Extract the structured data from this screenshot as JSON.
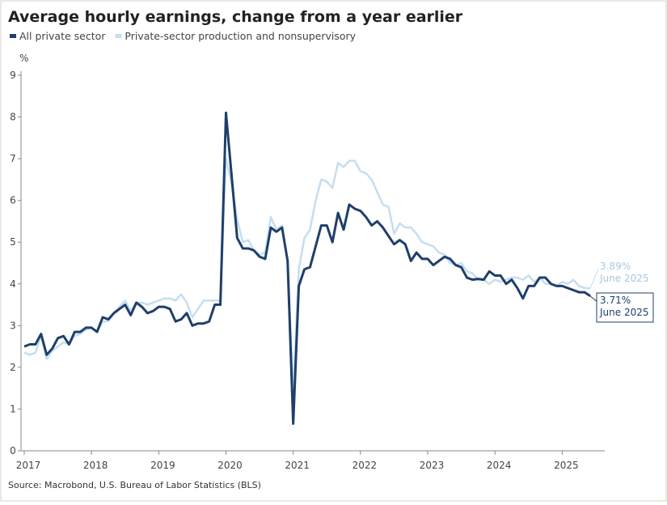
{
  "chart_data": {
    "type": "line",
    "title": "Average hourly earnings, change from a year earlier",
    "y_label": "%",
    "source": "Source: Macrobond, U.S. Bureau of Labor Statistics (BLS)",
    "categories": [
      "2017",
      null,
      null,
      null,
      null,
      null,
      null,
      null,
      null,
      null,
      null,
      null,
      "2018",
      null,
      null,
      null,
      null,
      null,
      null,
      null,
      null,
      null,
      null,
      null,
      "2019",
      null,
      null,
      null,
      null,
      null,
      null,
      null,
      null,
      null,
      null,
      null,
      "2020",
      null,
      null,
      null,
      null,
      null,
      null,
      null,
      null,
      null,
      null,
      null,
      "2021",
      null,
      null,
      null,
      null,
      null,
      null,
      null,
      null,
      null,
      null,
      null,
      "2022",
      null,
      null,
      null,
      null,
      null,
      null,
      null,
      null,
      null,
      null,
      null,
      "2023",
      null,
      null,
      null,
      null,
      null,
      null,
      null,
      null,
      null,
      null,
      null,
      "2024",
      null,
      null,
      null,
      null,
      null,
      null,
      null,
      null,
      null,
      null,
      null,
      "2025",
      null,
      null,
      null,
      null,
      null
    ],
    "series": [
      {
        "name": "All private sector",
        "color": "#1f3f6b",
        "values": [
          2.5,
          2.55,
          2.55,
          2.8,
          2.3,
          2.45,
          2.7,
          2.75,
          2.55,
          2.85,
          2.85,
          2.95,
          2.95,
          2.85,
          3.2,
          3.15,
          3.3,
          3.4,
          3.5,
          3.25,
          3.55,
          3.45,
          3.3,
          3.35,
          3.45,
          3.45,
          3.4,
          3.1,
          3.15,
          3.3,
          3.0,
          3.05,
          3.05,
          3.1,
          3.5,
          3.5,
          8.1,
          6.6,
          5.1,
          4.85,
          4.85,
          4.8,
          4.65,
          4.6,
          5.35,
          5.25,
          5.35,
          4.55,
          0.65,
          3.95,
          4.35,
          4.4,
          4.9,
          5.4,
          5.4,
          5.0,
          5.7,
          5.3,
          5.9,
          5.8,
          5.75,
          5.6,
          5.4,
          5.5,
          5.35,
          5.15,
          4.95,
          5.05,
          4.95,
          4.55,
          4.75,
          4.6,
          4.6,
          4.45,
          4.55,
          4.65,
          4.6,
          4.45,
          4.4,
          4.15,
          4.1,
          4.12,
          4.1,
          4.3,
          4.2,
          4.2,
          4.0,
          4.1,
          3.9,
          3.65,
          3.95,
          3.95,
          4.15,
          4.15,
          4.0,
          3.95,
          3.95,
          3.9,
          3.85,
          3.8,
          3.8,
          3.71
        ],
        "end_label": "3.71%",
        "end_date": "June 2025"
      },
      {
        "name": "Private-sector production and nonsupervisory",
        "color": "#c5def0",
        "values": [
          2.35,
          2.3,
          2.35,
          2.75,
          2.2,
          2.4,
          2.5,
          2.6,
          2.55,
          2.75,
          2.8,
          2.9,
          2.95,
          2.85,
          3.1,
          3.1,
          3.3,
          3.45,
          3.6,
          3.35,
          3.55,
          3.55,
          3.5,
          3.55,
          3.6,
          3.65,
          3.65,
          3.6,
          3.75,
          3.55,
          3.2,
          3.4,
          3.6,
          3.6,
          3.6,
          3.6,
          7.0,
          6.4,
          5.55,
          5.0,
          5.05,
          4.8,
          4.7,
          4.75,
          5.6,
          5.3,
          5.4,
          4.55,
          1.4,
          4.35,
          5.1,
          5.3,
          6.0,
          6.5,
          6.45,
          6.3,
          6.9,
          6.8,
          6.95,
          6.95,
          6.7,
          6.65,
          6.5,
          6.2,
          5.9,
          5.85,
          5.2,
          5.45,
          5.35,
          5.35,
          5.2,
          5.0,
          4.95,
          4.9,
          4.75,
          4.7,
          4.5,
          4.45,
          4.5,
          4.3,
          4.25,
          4.1,
          4.1,
          4.0,
          4.1,
          4.05,
          4.1,
          4.15,
          4.15,
          4.1,
          4.2,
          4.05,
          4.15,
          4.0,
          4.0,
          3.95,
          4.05,
          4.0,
          4.1,
          3.95,
          3.9,
          3.89
        ],
        "end_label": "3.89%",
        "end_date": "June 2025"
      }
    ],
    "ylim": [
      0,
      9
    ],
    "yticks": [
      0,
      1,
      2,
      3,
      4,
      5,
      6,
      7,
      8,
      9
    ],
    "grid": false
  }
}
